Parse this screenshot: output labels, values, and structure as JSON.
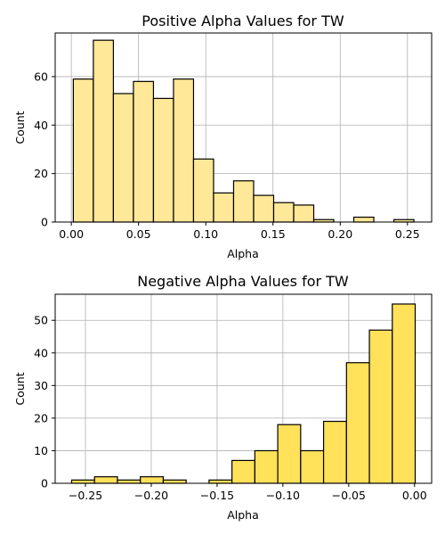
{
  "chart_data": [
    {
      "type": "bar",
      "title": "Positive Alpha Values for TW",
      "xlabel": "Alpha",
      "ylabel": "Count",
      "color": "#ffe897",
      "grid": true,
      "xlim": [
        -0.012,
        0.268
      ],
      "ylim": [
        0,
        78
      ],
      "xticks": [
        0.0,
        0.05,
        0.1,
        0.15,
        0.2,
        0.25
      ],
      "xtick_labels": [
        "0.00",
        "0.05",
        "0.10",
        "0.15",
        "0.20",
        "0.25"
      ],
      "yticks": [
        0,
        20,
        40,
        60
      ],
      "ytick_labels": [
        "0",
        "20",
        "40",
        "60"
      ],
      "bin_edges": [
        0.0015,
        0.0164,
        0.0313,
        0.0462,
        0.0611,
        0.076,
        0.0909,
        0.1058,
        0.1207,
        0.1356,
        0.1505,
        0.1654,
        0.1803,
        0.1952,
        0.2101,
        0.225,
        0.2399,
        0.2548
      ],
      "counts": [
        59,
        75,
        53,
        58,
        51,
        59,
        26,
        12,
        17,
        11,
        8,
        7,
        1,
        0,
        2,
        0,
        1
      ]
    },
    {
      "type": "bar",
      "title": "Negative Alpha Values for TW",
      "xlabel": "Alpha",
      "ylabel": "Count",
      "color": "#ffe15a",
      "grid": true,
      "xlim": [
        -0.273,
        0.013
      ],
      "ylim": [
        0,
        58
      ],
      "xticks": [
        -0.25,
        -0.2,
        -0.15,
        -0.1,
        -0.05,
        0.0
      ],
      "xtick_labels": [
        "−0.25",
        "−0.20",
        "−0.15",
        "−0.10",
        "−0.05",
        "0.00"
      ],
      "yticks": [
        0,
        10,
        20,
        30,
        40,
        50
      ],
      "ytick_labels": [
        "0",
        "10",
        "20",
        "30",
        "40",
        "50"
      ],
      "bin_edges": [
        -0.2605,
        -0.2431,
        -0.2257,
        -0.2083,
        -0.1909,
        -0.1735,
        -0.1561,
        -0.1387,
        -0.1213,
        -0.1039,
        -0.0865,
        -0.0691,
        -0.0517,
        -0.0343,
        -0.0169,
        0.0005
      ],
      "counts": [
        1,
        2,
        1,
        2,
        1,
        0,
        1,
        7,
        10,
        18,
        10,
        19,
        37,
        47,
        55
      ]
    }
  ]
}
